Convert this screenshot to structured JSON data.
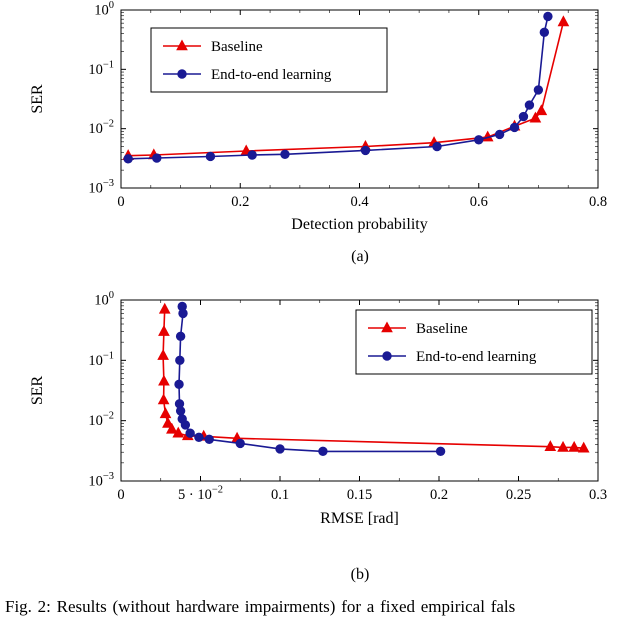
{
  "figure": {
    "subcaption_a": "(a)",
    "subcaption_b": "(b)",
    "caption": "Fig. 2: Results (without hardware impairments) for a fixed empirical fals"
  },
  "colors": {
    "baseline": "#e60000",
    "end_to_end": "#1a1a94",
    "axis": "#000000",
    "background": "#ffffff"
  },
  "chart_data": [
    {
      "type": "line",
      "name": "ser-vs-detection-probability",
      "title": "",
      "xlabel": "Detection probability",
      "ylabel": "SER",
      "x_scale": "linear",
      "y_scale": "log",
      "xlim": [
        0,
        0.8
      ],
      "ylim": [
        0.001,
        1
      ],
      "x_ticks": [
        0,
        0.2,
        0.4,
        0.6,
        0.8
      ],
      "x_tick_labels": [
        "0",
        "0.2",
        "0.4",
        "0.6",
        "0.8"
      ],
      "x_minor_step": 0.05,
      "y_tick_exponents": [
        0,
        -1,
        -2,
        -3
      ],
      "y_tick_labels": [
        "10^0",
        "10^-1",
        "10^-2",
        "10^-3"
      ],
      "grid": false,
      "legend_position": "top-left",
      "series": [
        {
          "name": "Baseline",
          "color": "#e60000",
          "marker": "triangle",
          "points": [
            [
              0.012,
              0.0035
            ],
            [
              0.055,
              0.0036
            ],
            [
              0.21,
              0.0042
            ],
            [
              0.41,
              0.005
            ],
            [
              0.525,
              0.0058
            ],
            [
              0.615,
              0.0072
            ],
            [
              0.66,
              0.011
            ],
            [
              0.695,
              0.015
            ],
            [
              0.705,
              0.02
            ],
            [
              0.742,
              0.63
            ]
          ]
        },
        {
          "name": "End-to-end learning",
          "color": "#1a1a94",
          "marker": "circle",
          "points": [
            [
              0.012,
              0.0031
            ],
            [
              0.06,
              0.0032
            ],
            [
              0.15,
              0.0034
            ],
            [
              0.22,
              0.0036
            ],
            [
              0.275,
              0.0037
            ],
            [
              0.41,
              0.0043
            ],
            [
              0.53,
              0.005
            ],
            [
              0.6,
              0.0065
            ],
            [
              0.635,
              0.008
            ],
            [
              0.66,
              0.0105
            ],
            [
              0.675,
              0.016
            ],
            [
              0.685,
              0.025
            ],
            [
              0.7,
              0.045
            ],
            [
              0.71,
              0.42
            ],
            [
              0.716,
              0.78
            ]
          ]
        }
      ]
    },
    {
      "type": "line",
      "name": "ser-vs-rmse",
      "title": "",
      "xlabel": "RMSE [rad]",
      "ylabel": "SER",
      "x_scale": "linear",
      "y_scale": "log",
      "xlim": [
        0,
        0.3
      ],
      "ylim": [
        0.001,
        1
      ],
      "x_ticks": [
        0,
        0.05,
        0.1,
        0.15,
        0.2,
        0.25,
        0.3
      ],
      "x_tick_labels": [
        "0",
        "5 · 10^-2",
        "0.1",
        "0.15",
        "0.2",
        "0.25",
        "0.3"
      ],
      "x_minor_step": 0.025,
      "y_tick_exponents": [
        0,
        -1,
        -2,
        -3
      ],
      "y_tick_labels": [
        "10^0",
        "10^-1",
        "10^-2",
        "10^-3"
      ],
      "grid": false,
      "legend_position": "top-right",
      "series": [
        {
          "name": "Baseline",
          "color": "#e60000",
          "marker": "triangle",
          "points": [
            [
              0.0275,
              0.7
            ],
            [
              0.027,
              0.3
            ],
            [
              0.0265,
              0.12
            ],
            [
              0.027,
              0.045
            ],
            [
              0.0268,
              0.022
            ],
            [
              0.028,
              0.013
            ],
            [
              0.0295,
              0.009
            ],
            [
              0.032,
              0.0072
            ],
            [
              0.036,
              0.0062
            ],
            [
              0.042,
              0.0056
            ],
            [
              0.052,
              0.0055
            ],
            [
              0.073,
              0.0051
            ],
            [
              0.27,
              0.0037
            ],
            [
              0.278,
              0.0036
            ],
            [
              0.285,
              0.0036
            ],
            [
              0.291,
              0.0035
            ]
          ]
        },
        {
          "name": "End-to-end learning",
          "color": "#1a1a94",
          "marker": "circle",
          "points": [
            [
              0.0385,
              0.78
            ],
            [
              0.039,
              0.6
            ],
            [
              0.0375,
              0.25
            ],
            [
              0.037,
              0.1
            ],
            [
              0.0365,
              0.04
            ],
            [
              0.0368,
              0.019
            ],
            [
              0.0375,
              0.0145
            ],
            [
              0.0385,
              0.0107
            ],
            [
              0.0405,
              0.0085
            ],
            [
              0.0435,
              0.0062
            ],
            [
              0.049,
              0.0053
            ],
            [
              0.0555,
              0.0049
            ],
            [
              0.075,
              0.0042
            ],
            [
              0.1,
              0.0034
            ],
            [
              0.127,
              0.0031
            ],
            [
              0.201,
              0.0031
            ]
          ]
        }
      ]
    }
  ]
}
